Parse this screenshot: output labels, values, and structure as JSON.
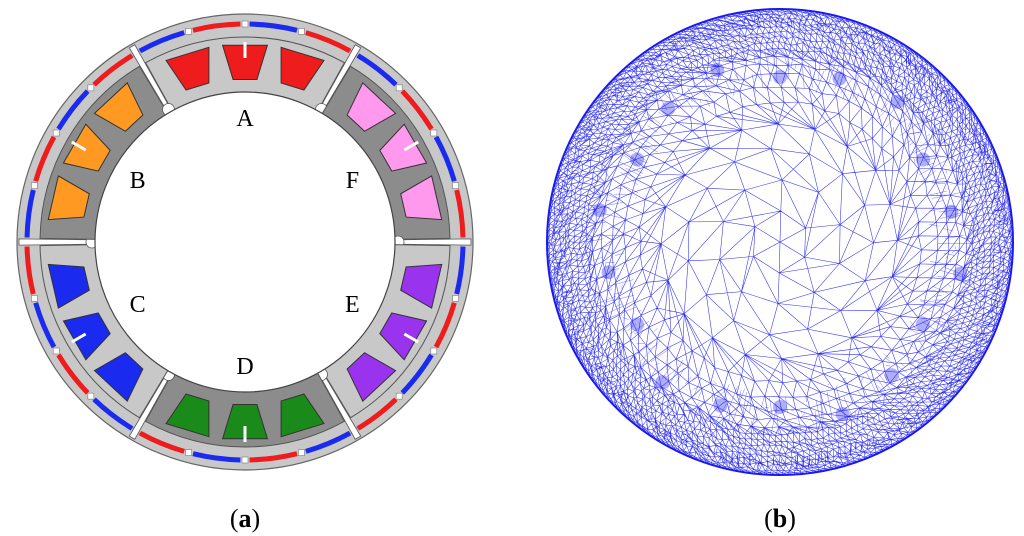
{
  "figure": {
    "panel_a": {
      "caption_open": "(",
      "caption_letter": "a",
      "caption_close": ")",
      "segments": [
        {
          "label": "A",
          "coil_color": "#ee1c1c"
        },
        {
          "label": "F",
          "coil_color": "#ff99ee"
        },
        {
          "label": "E",
          "coil_color": "#9933ee"
        },
        {
          "label": "D",
          "coil_color": "#1a8a1a"
        },
        {
          "label": "C",
          "coil_color": "#1a2aee"
        },
        {
          "label": "B",
          "coil_color": "#ff9922"
        }
      ],
      "colors": {
        "outer_ring": "#c8c8c8",
        "segment_light": "#c8c8c8",
        "segment_dark": "#8c8c8c",
        "magnet_red": "#ee1c1c",
        "magnet_blue": "#1a2aee"
      }
    },
    "panel_b": {
      "caption_open": "(",
      "caption_letter": "b",
      "caption_close": ")",
      "colors": {
        "mesh_line": "#1a1aee"
      }
    }
  }
}
